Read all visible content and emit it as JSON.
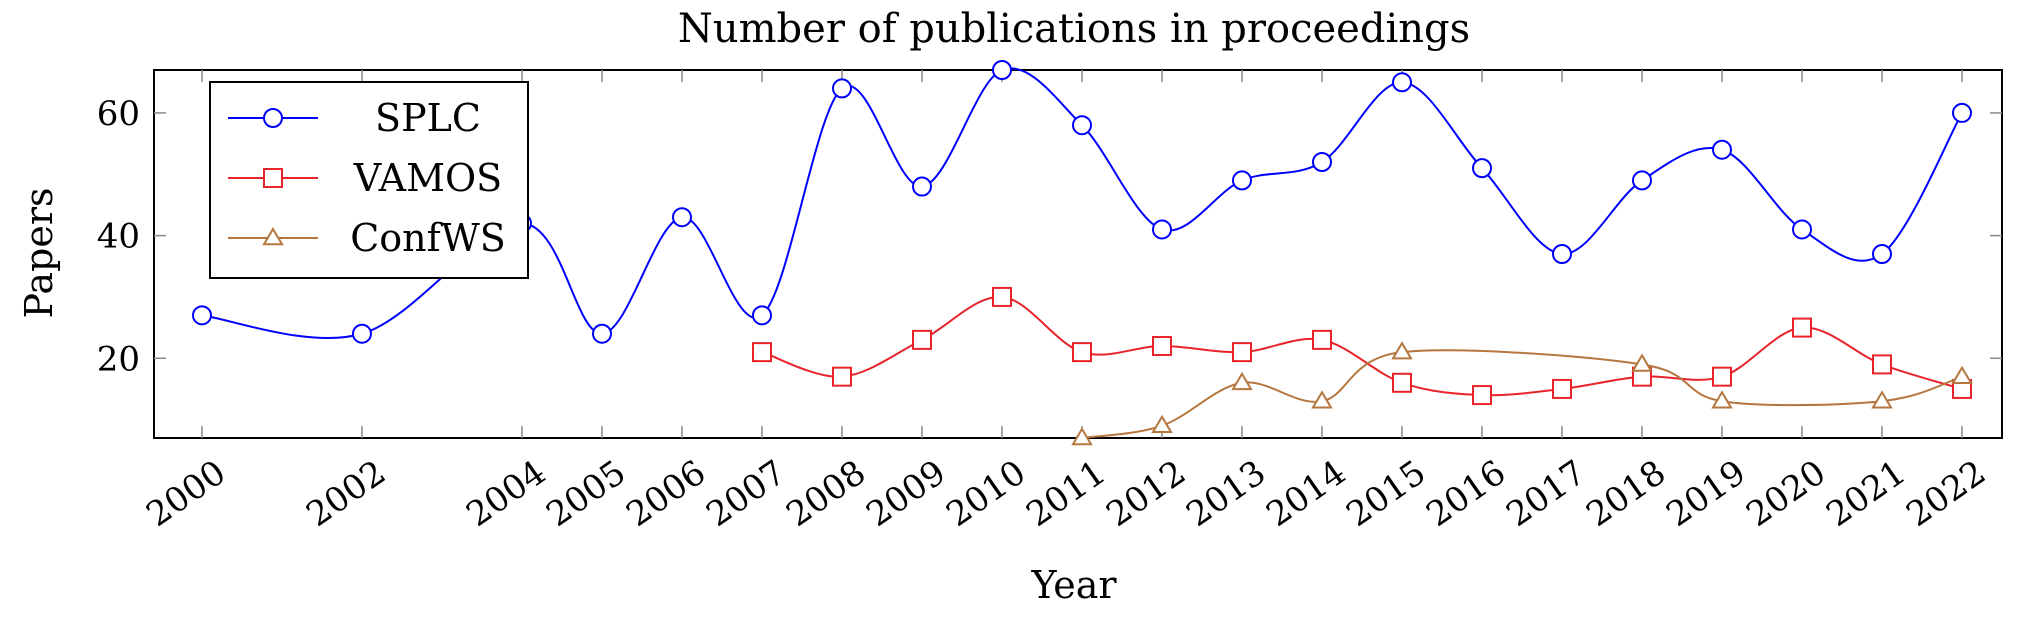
{
  "chart_data": {
    "type": "line",
    "title": "Number of publications in proceedings",
    "xlabel": "Year",
    "ylabel": "Papers",
    "x": [
      2000,
      2002,
      2004,
      2005,
      2006,
      2007,
      2008,
      2009,
      2010,
      2011,
      2012,
      2013,
      2014,
      2015,
      2016,
      2017,
      2018,
      2019,
      2020,
      2021,
      2022
    ],
    "y_ticks": [
      20,
      40,
      60
    ],
    "ylim": [
      7,
      67
    ],
    "legend_position": "top-left",
    "grid": false,
    "series": [
      {
        "name": "SPLC",
        "color": "#0000ff",
        "marker": "circle",
        "points": [
          [
            2000,
            27
          ],
          [
            2002,
            24
          ],
          [
            2004,
            42
          ],
          [
            2005,
            24
          ],
          [
            2006,
            43
          ],
          [
            2007,
            27
          ],
          [
            2008,
            64
          ],
          [
            2009,
            48
          ],
          [
            2010,
            67
          ],
          [
            2011,
            58
          ],
          [
            2012,
            41
          ],
          [
            2013,
            49
          ],
          [
            2014,
            52
          ],
          [
            2015,
            65
          ],
          [
            2016,
            51
          ],
          [
            2017,
            37
          ],
          [
            2018,
            49
          ],
          [
            2019,
            54
          ],
          [
            2020,
            41
          ],
          [
            2021,
            37
          ],
          [
            2022,
            60
          ]
        ]
      },
      {
        "name": "VAMOS",
        "color": "#e8242a",
        "marker": "square",
        "points": [
          [
            2007,
            21
          ],
          [
            2008,
            17
          ],
          [
            2009,
            23
          ],
          [
            2010,
            30
          ],
          [
            2011,
            21
          ],
          [
            2012,
            22
          ],
          [
            2013,
            21
          ],
          [
            2014,
            23
          ],
          [
            2015,
            16
          ],
          [
            2016,
            14
          ],
          [
            2017,
            15
          ],
          [
            2018,
            17
          ],
          [
            2019,
            17
          ],
          [
            2020,
            25
          ],
          [
            2021,
            19
          ],
          [
            2022,
            15
          ]
        ]
      },
      {
        "name": "ConfWS",
        "color": "#b5773f",
        "marker": "triangle",
        "points": [
          [
            2011,
            7
          ],
          [
            2012,
            9
          ],
          [
            2013,
            16
          ],
          [
            2014,
            13
          ],
          [
            2015,
            21
          ],
          [
            2018,
            19
          ],
          [
            2019,
            13
          ],
          [
            2021,
            13
          ],
          [
            2022,
            17
          ]
        ]
      }
    ]
  }
}
